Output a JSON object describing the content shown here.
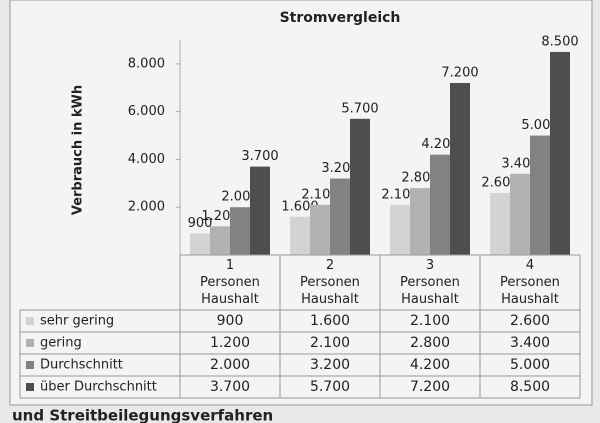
{
  "chart_data": {
    "type": "bar",
    "title": "Stromvergleich",
    "y_label": "Verbrauch in kWh",
    "categories": [
      "1 Personen Haushalt",
      "2 Personen Haushalt",
      "3 Personen Haushalt",
      "4 Personen Haushalt"
    ],
    "series": [
      {
        "name": "sehr gering",
        "color": "#d3d3d3",
        "values": [
          900,
          1600,
          2100,
          2600
        ],
        "value_labels": [
          "900",
          "1.600",
          "2.100",
          "2.600"
        ]
      },
      {
        "name": "gering",
        "color": "#b2b2b2",
        "values": [
          1200,
          2100,
          2800,
          3400
        ],
        "value_labels": [
          "1.200",
          "2.100",
          "2.800",
          "3.400"
        ]
      },
      {
        "name": "Durchschnitt",
        "color": "#828282",
        "values": [
          2000,
          3200,
          4200,
          5000
        ],
        "value_labels": [
          "2.000",
          "3.200",
          "4.200",
          "5.000"
        ]
      },
      {
        "name": "über Durchschnitt",
        "color": "#4e4e4e",
        "values": [
          3700,
          5700,
          7200,
          8500
        ],
        "value_labels": [
          "3.700",
          "5.700",
          "7.200",
          "8.500"
        ]
      }
    ],
    "ylim": [
      0,
      9000
    ],
    "yticks": [
      {
        "value": 2000,
        "label": "2.000"
      },
      {
        "value": 4000,
        "label": "4.000"
      },
      {
        "value": 6000,
        "label": "6.000"
      },
      {
        "value": 8000,
        "label": "8.000"
      }
    ],
    "grid": false
  },
  "footer": "und Streitbeilegungsverfahren"
}
